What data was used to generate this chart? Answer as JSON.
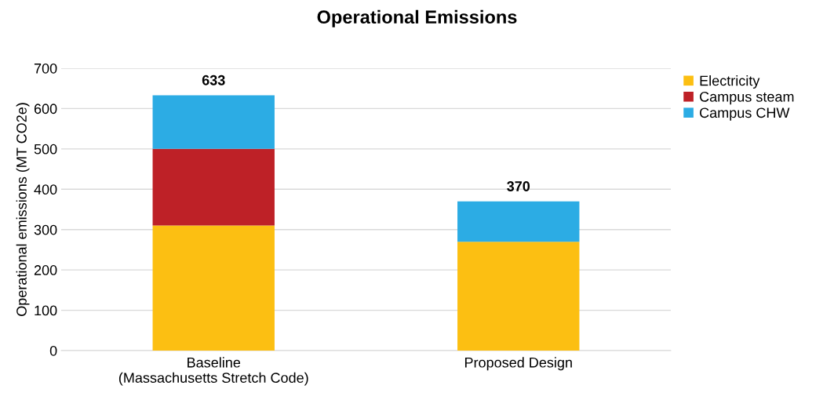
{
  "chart_data": {
    "type": "bar",
    "title": "Operational Emissions",
    "ylabel": "Operational emissions (MT CO2e)",
    "categories": [
      "Baseline\n(Massachusetts Stretch Code)",
      "Proposed Design"
    ],
    "stacked": true,
    "series": [
      {
        "name": "Electricity",
        "color": "#fcbf12",
        "values": [
          310,
          270
        ]
      },
      {
        "name": "Campus steam",
        "color": "#be2127",
        "values": [
          190,
          null
        ]
      },
      {
        "name": "Campus CHW",
        "color": "#2cace4",
        "values": [
          133,
          100
        ]
      }
    ],
    "totals": [
      "633",
      "370"
    ],
    "ylim": [
      0,
      700
    ],
    "yticks": [
      0,
      100,
      200,
      300,
      400,
      500,
      600,
      700
    ],
    "grid": "y",
    "legend": "right"
  }
}
